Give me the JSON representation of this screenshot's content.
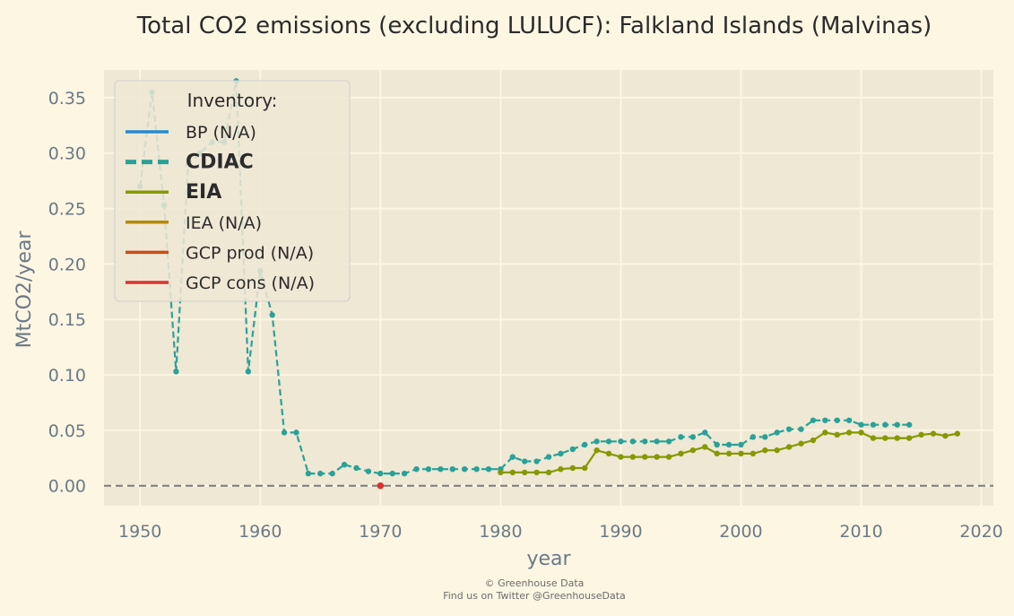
{
  "chart_data": {
    "type": "line",
    "title": "Total CO2 emissions (excluding LULUCF): Falkland Islands (Malvinas)",
    "xlabel": "year",
    "ylabel": "MtCO2/year",
    "xlim": [
      1947,
      2021
    ],
    "ylim": [
      -0.018,
      0.375
    ],
    "xticks": [
      1950,
      1960,
      1970,
      1980,
      1990,
      2000,
      2010,
      2020
    ],
    "yticks": [
      "0.00",
      "0.05",
      "0.10",
      "0.15",
      "0.20",
      "0.25",
      "0.30",
      "0.35"
    ],
    "grid": true,
    "legend_position": "top-left",
    "legend_title": "Inventory:",
    "legend": [
      {
        "label": "BP (N/A)",
        "color": "#268bd2",
        "bold": false,
        "dashed": false
      },
      {
        "label": "CDIAC",
        "color": "#2aa198",
        "bold": true,
        "dashed": true
      },
      {
        "label": "EIA",
        "color": "#859900",
        "bold": true,
        "dashed": false
      },
      {
        "label": "IEA (N/A)",
        "color": "#b58900",
        "bold": false,
        "dashed": false
      },
      {
        "label": "GCP prod (N/A)",
        "color": "#cb4b16",
        "bold": false,
        "dashed": false
      },
      {
        "label": "GCP cons (N/A)",
        "color": "#dc322f",
        "bold": false,
        "dashed": false
      }
    ],
    "series": [
      {
        "name": "CDIAC",
        "color": "#2aa198",
        "x": [
          1950,
          1951,
          1952,
          1953,
          1954,
          1955,
          1956,
          1957,
          1958,
          1959,
          1960,
          1961,
          1962,
          1963,
          1964,
          1965,
          1966,
          1967,
          1968,
          1969,
          1970,
          1971,
          1972,
          1973,
          1974,
          1975,
          1976,
          1977,
          1978,
          1979,
          1980,
          1981,
          1982,
          1983,
          1984,
          1985,
          1986,
          1987,
          1988,
          1989,
          1990,
          1991,
          1992,
          1993,
          1994,
          1995,
          1996,
          1997,
          1998,
          1999,
          2000,
          2001,
          2002,
          2003,
          2004,
          2005,
          2006,
          2007,
          2008,
          2009,
          2010,
          2011,
          2012,
          2013,
          2014
        ],
        "y": [
          0.27,
          0.355,
          0.253,
          0.103,
          0.29,
          0.3,
          0.31,
          0.31,
          0.365,
          0.103,
          0.194,
          0.154,
          0.048,
          0.048,
          0.011,
          0.011,
          0.011,
          0.019,
          0.016,
          0.013,
          0.011,
          0.011,
          0.011,
          0.015,
          0.015,
          0.015,
          0.015,
          0.015,
          0.015,
          0.015,
          0.015,
          0.026,
          0.022,
          0.022,
          0.026,
          0.029,
          0.033,
          0.037,
          0.04,
          0.04,
          0.04,
          0.04,
          0.04,
          0.04,
          0.04,
          0.044,
          0.044,
          0.048,
          0.037,
          0.037,
          0.037,
          0.044,
          0.044,
          0.048,
          0.051,
          0.051,
          0.059,
          0.059,
          0.059,
          0.059,
          0.055,
          0.055,
          0.055,
          0.055,
          0.055
        ]
      },
      {
        "name": "EIA",
        "color": "#859900",
        "x": [
          1980,
          1981,
          1982,
          1983,
          1984,
          1985,
          1986,
          1987,
          1988,
          1989,
          1990,
          1991,
          1992,
          1993,
          1994,
          1995,
          1996,
          1997,
          1998,
          1999,
          2000,
          2001,
          2002,
          2003,
          2004,
          2005,
          2006,
          2007,
          2008,
          2009,
          2010,
          2011,
          2012,
          2013,
          2014,
          2015,
          2016,
          2017,
          2018
        ],
        "y": [
          0.012,
          0.012,
          0.012,
          0.012,
          0.012,
          0.015,
          0.016,
          0.016,
          0.032,
          0.029,
          0.026,
          0.026,
          0.026,
          0.026,
          0.026,
          0.029,
          0.032,
          0.035,
          0.029,
          0.029,
          0.029,
          0.029,
          0.032,
          0.032,
          0.035,
          0.038,
          0.041,
          0.048,
          0.046,
          0.048,
          0.048,
          0.043,
          0.043,
          0.043,
          0.043,
          0.046,
          0.047,
          0.045,
          0.047
        ]
      }
    ],
    "extra_points": [
      {
        "x": 1970,
        "y": 0.0,
        "color": "#dc322f"
      }
    ],
    "footer": [
      "© Greenhouse Data",
      "Find us on Twitter @GreenhouseData"
    ]
  }
}
